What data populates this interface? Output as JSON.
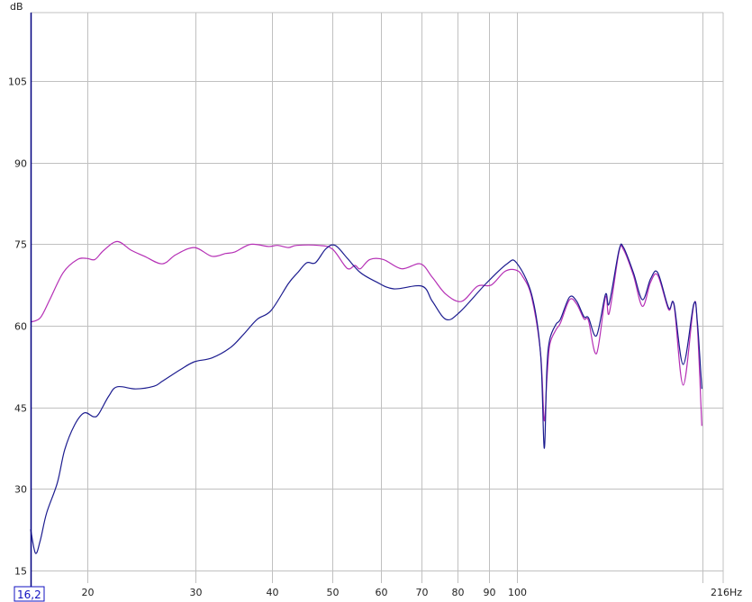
{
  "chart_data": {
    "type": "line",
    "title": "",
    "ylabel": "dB",
    "x_unit_label": "216Hz",
    "x_start_label": "16,2",
    "x_scale": "log",
    "xlim": [
      16.2,
      216
    ],
    "ylim": [
      12.7,
      117.6
    ],
    "grid": true,
    "x_ticks": [
      20,
      30,
      40,
      50,
      60,
      70,
      80,
      90,
      100,
      200
    ],
    "x_tick_labels": [
      "20",
      "30",
      "40",
      "50",
      "60",
      "70",
      "80",
      "90",
      "100",
      ""
    ],
    "y_ticks": [
      15,
      30,
      45,
      60,
      75,
      90,
      105
    ],
    "y_tick_labels": [
      "15",
      "30",
      "45",
      "60",
      "75",
      "90",
      "105"
    ],
    "colors": {
      "grid": "#c0c0c0",
      "axis": "#000080",
      "series_blue": "#1c1c8f",
      "series_magenta": "#b52fb5"
    },
    "series": [
      {
        "color": "#b52fb5",
        "x": [
          16.2,
          16.8,
          17.4,
          18.3,
          19.3,
          20,
          20.6,
          21.3,
          22.4,
          23.6,
          24.8,
          26.5,
          27.9,
          29.9,
          31.9,
          33.6,
          34.8,
          36.9,
          39.4,
          40.8,
          42.5,
          43.8,
          47.5,
          50.1,
          52.9,
          54.5,
          55.6,
          57.6,
          60.6,
          64.9,
          69.6,
          72.8,
          76.6,
          81.2,
          86.2,
          90.7,
          95.4,
          99.3,
          102,
          105.5,
          109.1,
          110.6,
          111.7,
          112.9,
          115.6,
          117.5,
          121.6,
          124.9,
          128.3,
          130.5,
          134.5,
          139.1,
          141.0,
          146.3,
          148.8,
          154.4,
          159.7,
          164.6,
          169.1,
          176.1,
          179.7,
          186.0,
          193.5,
          196.1,
          199.4
        ],
        "y": [
          60.7,
          61.5,
          64.8,
          69.8,
          72.2,
          72.4,
          72.2,
          73.9,
          75.5,
          73.9,
          72.8,
          71.4,
          73.1,
          74.4,
          72.8,
          73.3,
          73.6,
          75,
          74.6,
          74.8,
          74.4,
          74.8,
          74.8,
          74.1,
          70.6,
          71.1,
          70.5,
          72.2,
          72.2,
          70.5,
          71.4,
          68.9,
          65.8,
          64.5,
          67.3,
          67.5,
          70,
          70.3,
          69.1,
          65.3,
          55,
          42.6,
          50,
          56.5,
          59.3,
          60.5,
          64.8,
          64,
          61.3,
          61,
          54.9,
          65.3,
          62.3,
          73.6,
          74,
          69.3,
          63.6,
          68,
          69.3,
          63,
          63.8,
          49.1,
          63.8,
          60,
          41.6
        ]
      },
      {
        "color": "#1c1c8f",
        "x": [
          16.2,
          16.5,
          16.8,
          17.2,
          17.9,
          18.4,
          19.1,
          19.8,
          20.5,
          20.9,
          21.7,
          22.4,
          24.0,
          25.7,
          26.5,
          28.4,
          29.9,
          31.9,
          34.2,
          35.9,
          37.8,
          39.8,
          42.5,
          44.0,
          45.5,
          47.0,
          48.9,
          50.6,
          52.9,
          55.6,
          59.0,
          63.0,
          70.0,
          72.8,
          76.6,
          80.6,
          89,
          96.2,
          99.7,
          105.5,
          109.1,
          110.6,
          111.7,
          112.9,
          115.6,
          117.5,
          121.6,
          124.9,
          128.3,
          130.5,
          134.5,
          139.1,
          141.0,
          146.3,
          148.8,
          154.4,
          159.7,
          164.6,
          169.1,
          176.1,
          179.7,
          186.0,
          193.5,
          196.1,
          199.4
        ],
        "y": [
          22.6,
          18.2,
          20.6,
          25.6,
          31.1,
          37.2,
          41.8,
          44,
          43.3,
          43.8,
          47.1,
          48.8,
          48.4,
          48.9,
          49.8,
          52,
          53.4,
          54.1,
          56,
          58.4,
          61.2,
          62.8,
          67.8,
          69.8,
          71.6,
          71.6,
          74.2,
          74.8,
          72.5,
          69.8,
          68.1,
          66.8,
          67.3,
          64.5,
          61.2,
          62.5,
          67.8,
          71.4,
          71.6,
          65.8,
          54.9,
          37.5,
          52,
          57.5,
          60.3,
          61.2,
          65.3,
          64.5,
          61.7,
          61.5,
          58.2,
          65.8,
          64.1,
          73.9,
          74.4,
          69.8,
          64.8,
          68.6,
          69.8,
          63.3,
          64,
          52.9,
          64,
          60.8,
          48.4
        ]
      }
    ]
  }
}
